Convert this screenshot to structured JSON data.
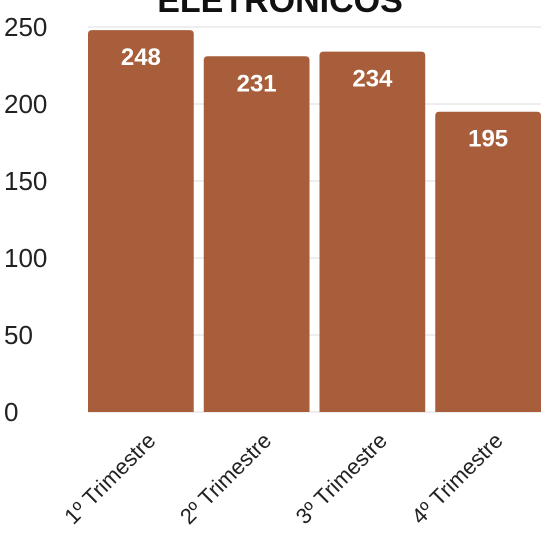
{
  "chart_data": {
    "type": "bar",
    "title": "ELETRÔNICOS",
    "xlabel": "",
    "ylabel": "",
    "categories": [
      "1º Trimestre",
      "2º Trimestre",
      "3º Trimestre",
      "4º Trimestre"
    ],
    "values": [
      248,
      231,
      234,
      195
    ],
    "data_labels": [
      "248",
      "231",
      "234",
      "195"
    ],
    "ylim": [
      0,
      250
    ],
    "yticks": [
      0,
      50,
      100,
      150,
      200,
      250
    ],
    "ytick_labels": [
      "0",
      "50",
      "100",
      "150",
      "200",
      "250"
    ],
    "grid": true,
    "legend": "none",
    "colors": {
      "bar": "#A85E3A",
      "grid": "#DDDDDD",
      "bar_label": "#FFFFFF",
      "text": "#222222"
    }
  }
}
